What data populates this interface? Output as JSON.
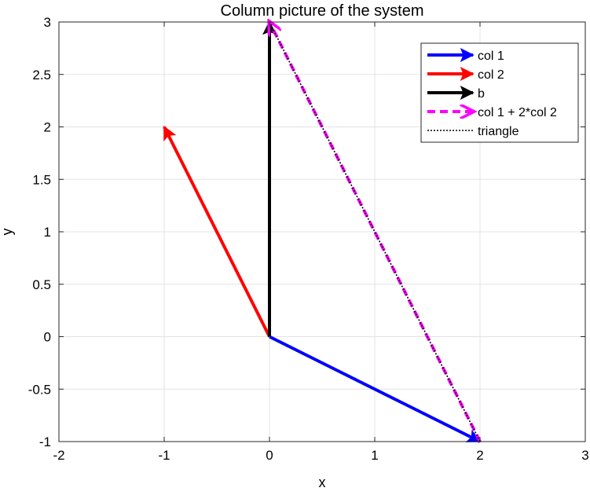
{
  "chart_data": {
    "type": "line",
    "title": "Column picture of the system",
    "xlabel": "x",
    "ylabel": "y",
    "xlim": [
      -2,
      3
    ],
    "ylim": [
      -1,
      3
    ],
    "xticks": [
      -2,
      -1,
      0,
      1,
      2,
      3
    ],
    "xtick_labels": [
      "-2",
      "-1",
      "0",
      "1",
      "2",
      "3"
    ],
    "yticks": [
      -1,
      -0.5,
      0,
      0.5,
      1,
      1.5,
      2,
      2.5,
      3
    ],
    "ytick_labels": [
      "-1",
      "-0.5",
      "0",
      "0.5",
      "1",
      "1.5",
      "2",
      "2.5",
      "3"
    ],
    "grid": true,
    "legend_position": "top-right",
    "series": [
      {
        "name": "col 1",
        "kind": "arrow",
        "color": "#0000ff",
        "style": "solid",
        "x": [
          0,
          2
        ],
        "y": [
          0,
          -1
        ]
      },
      {
        "name": "col 2",
        "kind": "arrow",
        "color": "#ff0000",
        "style": "solid",
        "x": [
          0,
          -1
        ],
        "y": [
          0,
          2
        ]
      },
      {
        "name": "b",
        "kind": "arrow",
        "color": "#000000",
        "style": "solid",
        "x": [
          0,
          0
        ],
        "y": [
          0,
          3
        ]
      },
      {
        "name": "col 1 + 2*col 2",
        "kind": "arrow",
        "color": "#ff00ff",
        "style": "dashed",
        "x": [
          2,
          0
        ],
        "y": [
          -1,
          3
        ]
      },
      {
        "name": "triangle",
        "kind": "line",
        "color": "#000000",
        "style": "dotted",
        "x": [
          2,
          0
        ],
        "y": [
          -1,
          3
        ]
      }
    ]
  }
}
